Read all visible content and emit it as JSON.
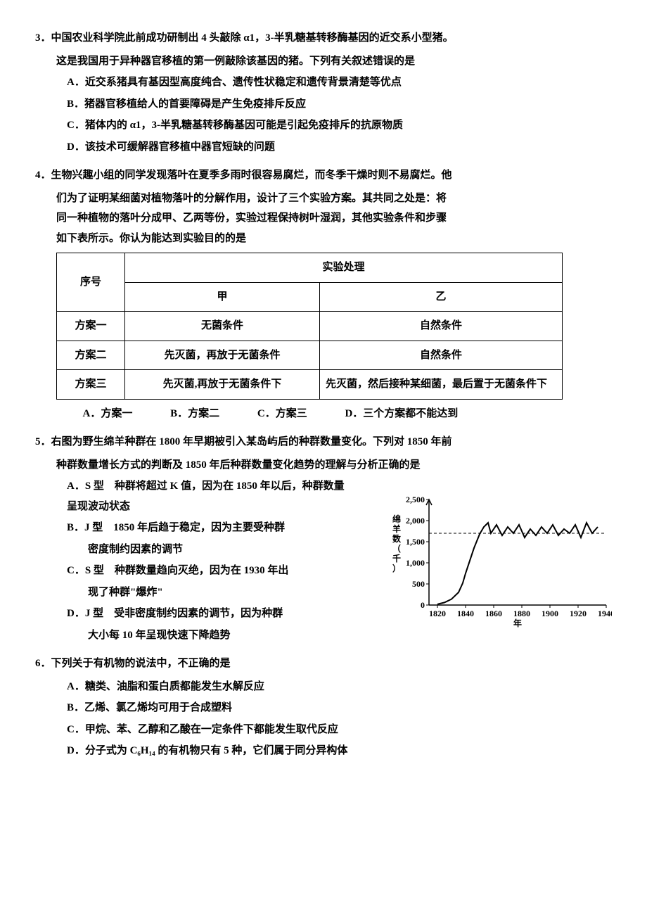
{
  "q3": {
    "num": "3．",
    "stem": "中国农业科学院此前成功研制出 4 头敲除 α1，3-半乳糖基转移酶基因的近交系小型猪。",
    "body": "这是我国用于异种器官移植的第一例敲除该基因的猪。下列有关叙述错误的是",
    "opts": {
      "A": "A．近交系猪具有基因型高度纯合、遗传性状稳定和遗传背景清楚等优点",
      "B": "B．猪器官移植给人的首要障碍是产生免疫排斥反应",
      "C": "C．猪体内的 α1，3-半乳糖基转移酶基因可能是引起免疫排斥的抗原物质",
      "D": "D．该技术可缓解器官移植中器官短缺的问题"
    }
  },
  "q4": {
    "num": "4．",
    "stem": "生物兴趣小组的同学发现落叶在夏季多雨时很容易腐烂，而冬季干燥时则不易腐烂。他",
    "body1": "们为了证明某细菌对植物落叶的分解作用，设计了三个实验方案。其共同之处是：将",
    "body2": "同一种植物的落叶分成甲、乙两等份，实验过程保持树叶湿润，其他实验条件和步骤",
    "body3": "如下表所示。你认为能达到实验目的的是",
    "table": {
      "h_seq": "序号",
      "h_treat": "实验处理",
      "h_jia": "甲",
      "h_yi": "乙",
      "r1": {
        "seq": "方案一",
        "jia": "无菌条件",
        "yi": "自然条件"
      },
      "r2": {
        "seq": "方案二",
        "jia": "先灭菌，再放于无菌条件",
        "yi": "自然条件"
      },
      "r3": {
        "seq": "方案三",
        "jia": "先灭菌,再放于无菌条件下",
        "yi": "先灭菌，然后接种某细菌，最后置于无菌条件下"
      }
    },
    "opts": {
      "A": "A．方案一",
      "B": "B．方案二",
      "C": "C．方案三",
      "D": "D．三个方案都不能达到"
    }
  },
  "q5": {
    "num": "5．",
    "stem": "右图为野生绵羊种群在 1800 年早期被引入某岛屿后的种群数量变化。下列对 1850 年前",
    "body": "种群数量增长方式的判断及 1850 年后种群数量变化趋势的理解与分析正确的是",
    "opts": {
      "A1": "A．S 型　种群将超过 K 值，因为在 1850 年以后，种群数量呈现波动状态",
      "B1": "B．J 型　1850 年后趋于稳定，因为主要受种群",
      "B2": "密度制约因素的调节",
      "C1": "C．S 型　种群数量趋向灭绝，因为在 1930 年出",
      "C2": "现了种群\"爆炸\"",
      "D1": "D．J 型　受非密度制约因素的调节，因为种群",
      "D2": "大小每 10 年呈现快速下降趋势"
    },
    "chart": {
      "ylabel": "绵羊数（千）",
      "xlabel": "年",
      "yticks": [
        "0",
        "500",
        "1,000",
        "1,500",
        "2,000",
        "2,500"
      ],
      "xticks": [
        "1820",
        "1840",
        "1860",
        "1880",
        "1900",
        "1920",
        "1940"
      ],
      "axis_color": "#000000",
      "line_color": "#000000",
      "bg": "#ffffff",
      "line_width": 2,
      "dash_y": 1700,
      "data": [
        [
          1820,
          20
        ],
        [
          1825,
          60
        ],
        [
          1830,
          140
        ],
        [
          1835,
          300
        ],
        [
          1838,
          520
        ],
        [
          1840,
          750
        ],
        [
          1843,
          1050
        ],
        [
          1846,
          1350
        ],
        [
          1850,
          1680
        ],
        [
          1853,
          1850
        ],
        [
          1856,
          1950
        ],
        [
          1858,
          1700
        ],
        [
          1862,
          1900
        ],
        [
          1866,
          1650
        ],
        [
          1870,
          1850
        ],
        [
          1874,
          1700
        ],
        [
          1878,
          1900
        ],
        [
          1882,
          1600
        ],
        [
          1886,
          1800
        ],
        [
          1890,
          1650
        ],
        [
          1894,
          1850
        ],
        [
          1898,
          1700
        ],
        [
          1902,
          1900
        ],
        [
          1906,
          1650
        ],
        [
          1910,
          1800
        ],
        [
          1914,
          1700
        ],
        [
          1918,
          1900
        ],
        [
          1922,
          1600
        ],
        [
          1926,
          1950
        ],
        [
          1930,
          1700
        ],
        [
          1934,
          1850
        ]
      ],
      "xlim": [
        1814,
        1940
      ],
      "ylim": [
        0,
        2500
      ],
      "font_size": 12
    }
  },
  "q6": {
    "num": "6．",
    "stem": "下列关于有机物的说法中，不正确的是",
    "opts": {
      "A": "A．糖类、油脂和蛋白质都能发生水解反应",
      "B": "B．乙烯、氯乙烯均可用于合成塑料",
      "C": "C．甲烷、苯、乙醇和乙酸在一定条件下都能发生取代反应",
      "D": "D．分子式为 C₆H₁₄ 的有机物只有 5 种，它们属于同分异构体"
    }
  }
}
